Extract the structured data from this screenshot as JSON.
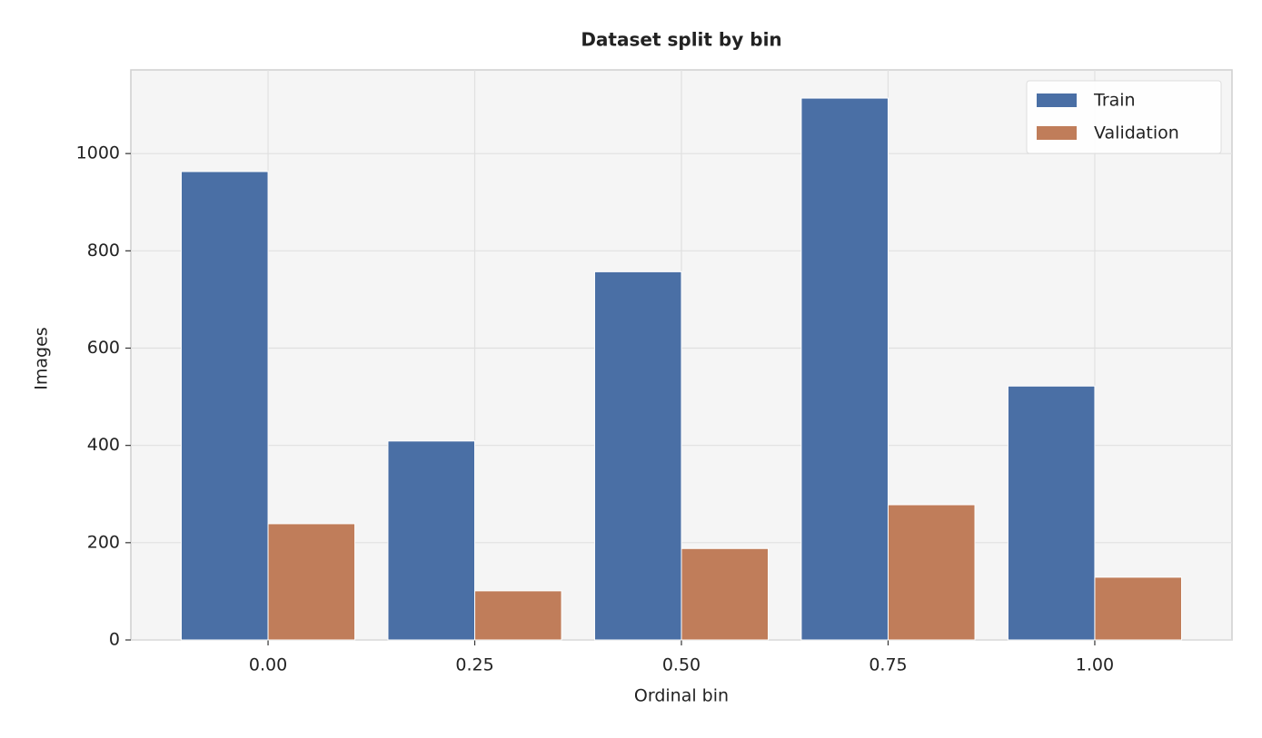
{
  "chart_data": {
    "type": "bar",
    "title": "Dataset split by bin",
    "x_label": "Ordinal bin",
    "y_label": "Images",
    "x": [
      0,
      0.25,
      0.5,
      0.75,
      1
    ],
    "series": [
      {
        "name": "Train",
        "color": "#4a6fa5",
        "values": [
          963,
          409,
          757,
          1114,
          522
        ]
      },
      {
        "name": "Validation",
        "color": "#c07d5a",
        "values": [
          239,
          101,
          188,
          278,
          129
        ]
      }
    ],
    "xlim": [
      -0.166,
      1.166
    ],
    "xticks": [
      {
        "value": 0,
        "label": "0.00"
      },
      {
        "value": 0.25,
        "label": "0.25"
      },
      {
        "value": 0.5,
        "label": "0.50"
      },
      {
        "value": 0.75,
        "label": "0.75"
      },
      {
        "value": 1,
        "label": "1.00"
      }
    ],
    "ylim": [
      0,
      1172
    ],
    "yticks": [
      0,
      200,
      400,
      600,
      800,
      1000
    ],
    "grid": true,
    "legend": "upper right"
  }
}
